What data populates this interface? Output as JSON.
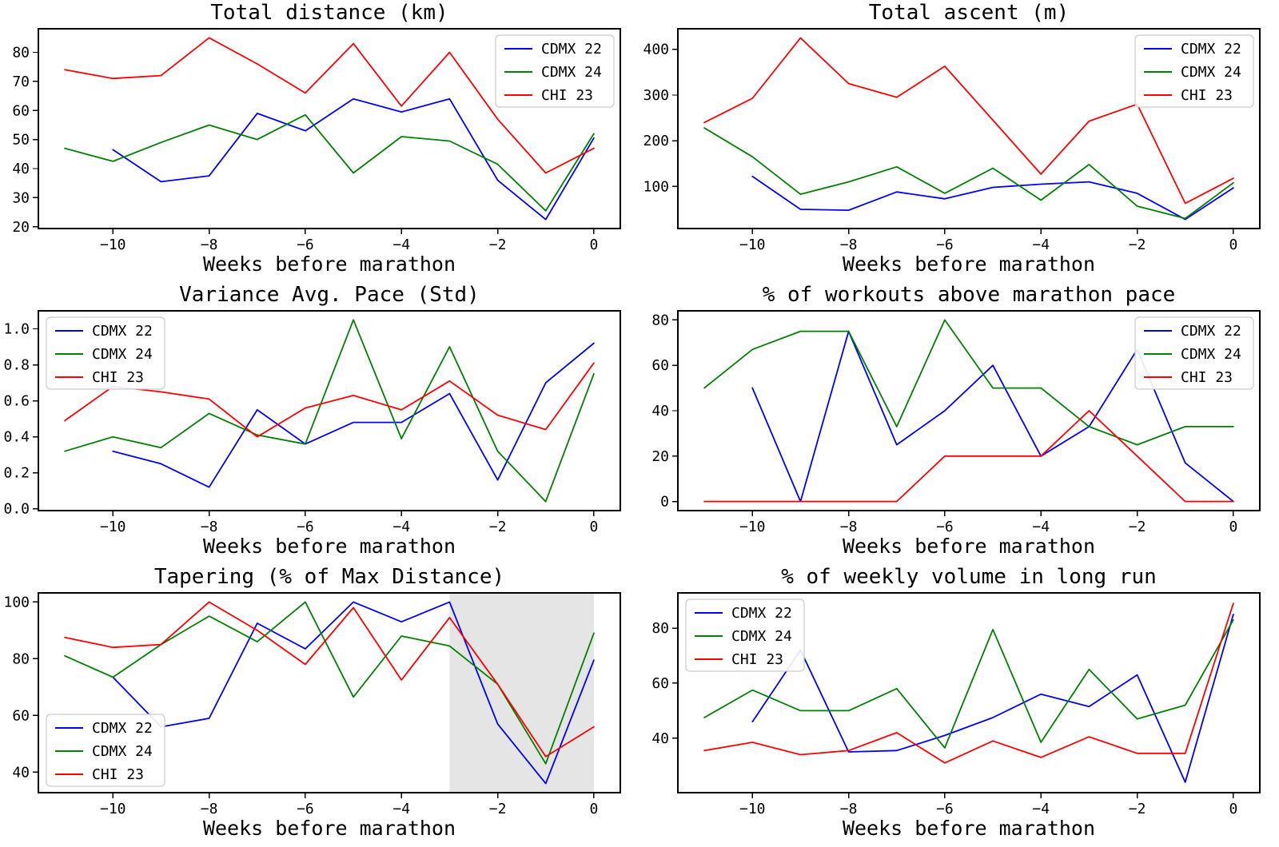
{
  "figure": {
    "background": "#ffffff",
    "series_colors": {
      "CDMX 22": "#0000ff",
      "CDMX 24": "#008000",
      "CHI 23": "#ff0000"
    },
    "shade_color": "#e5e5e5"
  },
  "chart_data": [
    {
      "type": "line",
      "title": "Total distance (km)",
      "xlabel": "Weeks before marathon",
      "xlim": [
        -11.55,
        0.55
      ],
      "ylim": [
        19.4,
        88.1
      ],
      "xticks": {
        "values": [
          -10,
          -8,
          -6,
          -4,
          -2,
          0
        ],
        "labels": [
          "−10",
          "−8",
          "−6",
          "−4",
          "−2",
          "0"
        ]
      },
      "yticks": {
        "values": [
          20,
          30,
          40,
          50,
          60,
          70,
          80
        ],
        "labels": [
          "20",
          "30",
          "40",
          "50",
          "60",
          "70",
          "80"
        ]
      },
      "legend": {
        "position": "upper-right"
      },
      "series": [
        {
          "name": "CDMX 22",
          "color": "#0000ff",
          "x": [
            -10,
            -9,
            -8,
            -7,
            -6,
            -5,
            -4,
            -3,
            -2,
            -1,
            0
          ],
          "y": [
            46.5,
            35.5,
            37.5,
            59,
            53,
            64,
            59.5,
            64,
            36,
            22.5,
            50.5
          ]
        },
        {
          "name": "CDMX 24",
          "color": "#008000",
          "x": [
            -11,
            -10,
            -9,
            -8,
            -7,
            -6,
            -5,
            -4,
            -3,
            -2,
            -1,
            0
          ],
          "y": [
            47,
            42.5,
            49,
            55,
            50,
            58.5,
            38.5,
            51,
            49.5,
            41.5,
            25.5,
            52
          ]
        },
        {
          "name": "CHI 23",
          "color": "#ff0000",
          "x": [
            -11,
            -10,
            -9,
            -8,
            -7,
            -6,
            -5,
            -4,
            -3,
            -2,
            -1,
            0
          ],
          "y": [
            74,
            71,
            72,
            85,
            76,
            66,
            83,
            61.5,
            80,
            57,
            38.5,
            47
          ]
        }
      ]
    },
    {
      "type": "line",
      "title": "Total ascent (m)",
      "xlabel": "Weeks before marathon",
      "xlim": [
        -11.55,
        0.55
      ],
      "ylim": [
        8,
        445
      ],
      "xticks": {
        "values": [
          -10,
          -8,
          -6,
          -4,
          -2,
          0
        ],
        "labels": [
          "−10",
          "−8",
          "−6",
          "−4",
          "−2",
          "0"
        ]
      },
      "yticks": {
        "values": [
          100,
          200,
          300,
          400
        ],
        "labels": [
          "100",
          "200",
          "300",
          "400"
        ]
      },
      "legend": {
        "position": "upper-right"
      },
      "series": [
        {
          "name": "CDMX 22",
          "color": "#0000ff",
          "x": [
            -10,
            -9,
            -8,
            -7,
            -6,
            -5,
            -4,
            -3,
            -2,
            -1,
            0
          ],
          "y": [
            122,
            50,
            48,
            88,
            73,
            98,
            105,
            110,
            85,
            28,
            97
          ]
        },
        {
          "name": "CDMX 24",
          "color": "#008000",
          "x": [
            -11,
            -10,
            -9,
            -8,
            -7,
            -6,
            -5,
            -4,
            -3,
            -2,
            -1,
            0
          ],
          "y": [
            228,
            165,
            83,
            110,
            143,
            85,
            140,
            70,
            148,
            57,
            30,
            108
          ]
        },
        {
          "name": "CHI 23",
          "color": "#ff0000",
          "x": [
            -11,
            -10,
            -9,
            -8,
            -7,
            -6,
            -5,
            -4,
            -3,
            -2,
            -1,
            0
          ],
          "y": [
            240,
            293,
            425,
            325,
            295,
            363,
            245,
            127,
            243,
            280,
            63,
            118
          ]
        }
      ]
    },
    {
      "type": "line",
      "title": "Variance Avg. Pace (Std)",
      "xlabel": "Weeks before marathon",
      "xlim": [
        -11.55,
        0.55
      ],
      "ylim": [
        -0.01,
        1.1
      ],
      "xticks": {
        "values": [
          -10,
          -8,
          -6,
          -4,
          -2,
          0
        ],
        "labels": [
          "−10",
          "−8",
          "−6",
          "−4",
          "−2",
          "0"
        ]
      },
      "yticks": {
        "values": [
          0.0,
          0.2,
          0.4,
          0.6,
          0.8,
          1.0
        ],
        "labels": [
          "0.0",
          "0.2",
          "0.4",
          "0.6",
          "0.8",
          "1.0"
        ]
      },
      "legend": {
        "position": "upper-left"
      },
      "series": [
        {
          "name": "CDMX 22",
          "color": "#0000ff",
          "x": [
            -10,
            -9,
            -8,
            -7,
            -6,
            -5,
            -4,
            -3,
            -2,
            -1,
            0
          ],
          "y": [
            0.32,
            0.25,
            0.12,
            0.55,
            0.36,
            0.48,
            0.48,
            0.64,
            0.16,
            0.7,
            0.92
          ]
        },
        {
          "name": "CDMX 24",
          "color": "#008000",
          "x": [
            -11,
            -10,
            -9,
            -8,
            -7,
            -6,
            -5,
            -4,
            -3,
            -2,
            -1,
            0
          ],
          "y": [
            0.32,
            0.4,
            0.34,
            0.53,
            0.41,
            0.36,
            1.05,
            0.39,
            0.9,
            0.32,
            0.04,
            0.75
          ]
        },
        {
          "name": "CHI 23",
          "color": "#ff0000",
          "x": [
            -11,
            -10,
            -9,
            -8,
            -7,
            -6,
            -5,
            -4,
            -3,
            -2,
            -1,
            0
          ],
          "y": [
            0.49,
            0.68,
            0.65,
            0.61,
            0.4,
            0.56,
            0.63,
            0.55,
            0.71,
            0.52,
            0.44,
            0.81
          ]
        }
      ]
    },
    {
      "type": "line",
      "title": "% of workouts above marathon pace",
      "xlabel": "Weeks before marathon",
      "xlim": [
        -11.55,
        0.55
      ],
      "ylim": [
        -4,
        84
      ],
      "xticks": {
        "values": [
          -10,
          -8,
          -6,
          -4,
          -2,
          0
        ],
        "labels": [
          "−10",
          "−8",
          "−6",
          "−4",
          "−2",
          "0"
        ]
      },
      "yticks": {
        "values": [
          0,
          20,
          40,
          60,
          80
        ],
        "labels": [
          "0",
          "20",
          "40",
          "60",
          "80"
        ]
      },
      "legend": {
        "position": "upper-right"
      },
      "series": [
        {
          "name": "CDMX 22",
          "color": "#0000ff",
          "x": [
            -10,
            -9,
            -8,
            -7,
            -6,
            -5,
            -4,
            -3,
            -2,
            -1,
            0
          ],
          "y": [
            50,
            0,
            75,
            25,
            40,
            60,
            20,
            33,
            67,
            17,
            0
          ]
        },
        {
          "name": "CDMX 24",
          "color": "#008000",
          "x": [
            -11,
            -10,
            -9,
            -8,
            -7,
            -6,
            -5,
            -4,
            -3,
            -2,
            -1,
            0
          ],
          "y": [
            50,
            67,
            75,
            75,
            33,
            80,
            50,
            50,
            33,
            25,
            33,
            33
          ]
        },
        {
          "name": "CHI 23",
          "color": "#ff0000",
          "x": [
            -11,
            -10,
            -9,
            -8,
            -7,
            -6,
            -5,
            -4,
            -3,
            -2,
            -1,
            0
          ],
          "y": [
            0,
            0,
            0,
            0,
            0,
            20,
            20,
            20,
            40,
            20,
            0,
            0
          ]
        }
      ]
    },
    {
      "type": "line",
      "title": "Tapering (% of Max Distance)",
      "xlabel": "Weeks before marathon",
      "xlim": [
        -11.55,
        0.55
      ],
      "ylim": [
        32.8,
        103.2
      ],
      "xticks": {
        "values": [
          -10,
          -8,
          -6,
          -4,
          -2,
          0
        ],
        "labels": [
          "−10",
          "−8",
          "−6",
          "−4",
          "−2",
          "0"
        ]
      },
      "yticks": {
        "values": [
          40,
          60,
          80,
          100
        ],
        "labels": [
          "40",
          "60",
          "80",
          "100"
        ]
      },
      "legend": {
        "position": "lower-left"
      },
      "shaded_span": {
        "x0": -3,
        "x1": 0
      },
      "series": [
        {
          "name": "CDMX 22",
          "color": "#0000ff",
          "x": [
            -10,
            -9,
            -8,
            -7,
            -6,
            -5,
            -4,
            -3,
            -2,
            -1,
            0
          ],
          "y": [
            73.5,
            56,
            59,
            92.5,
            83.5,
            100,
            93,
            100,
            57,
            36,
            79.5
          ]
        },
        {
          "name": "CDMX 24",
          "color": "#008000",
          "x": [
            -11,
            -10,
            -9,
            -8,
            -7,
            -6,
            -5,
            -4,
            -3,
            -2,
            -1,
            0
          ],
          "y": [
            81,
            73.5,
            85,
            95,
            86,
            100,
            66.5,
            88,
            84.5,
            71,
            43,
            89
          ]
        },
        {
          "name": "CHI 23",
          "color": "#ff0000",
          "x": [
            -11,
            -10,
            -9,
            -8,
            -7,
            -6,
            -5,
            -4,
            -3,
            -2,
            -1,
            0
          ],
          "y": [
            87.5,
            84,
            85,
            100,
            90,
            78,
            98,
            72.5,
            94.5,
            71,
            45.5,
            56
          ]
        }
      ]
    },
    {
      "type": "line",
      "title": "% of weekly volume in long run",
      "xlabel": "Weeks before marathon",
      "xlim": [
        -11.55,
        0.55
      ],
      "ylim": [
        20.2,
        92.8
      ],
      "xticks": {
        "values": [
          -10,
          -8,
          -6,
          -4,
          -2,
          0
        ],
        "labels": [
          "−10",
          "−8",
          "−6",
          "−4",
          "−2",
          "0"
        ]
      },
      "yticks": {
        "values": [
          40,
          60,
          80
        ],
        "labels": [
          "40",
          "60",
          "80"
        ]
      },
      "legend": {
        "position": "upper-left"
      },
      "series": [
        {
          "name": "CDMX 22",
          "color": "#0000ff",
          "x": [
            -10,
            -9,
            -8,
            -7,
            -6,
            -5,
            -4,
            -3,
            -2,
            -1,
            0
          ],
          "y": [
            46,
            72,
            35,
            35.5,
            41,
            47.5,
            56,
            51.5,
            63,
            24,
            85
          ]
        },
        {
          "name": "CDMX 24",
          "color": "#008000",
          "x": [
            -11,
            -10,
            -9,
            -8,
            -7,
            -6,
            -5,
            -4,
            -3,
            -2,
            -1,
            0
          ],
          "y": [
            47.5,
            57.5,
            50,
            50,
            58,
            36.5,
            79.5,
            38.5,
            65,
            47,
            52,
            83
          ]
        },
        {
          "name": "CHI 23",
          "color": "#ff0000",
          "x": [
            -11,
            -10,
            -9,
            -8,
            -7,
            -6,
            -5,
            -4,
            -3,
            -2,
            -1,
            0
          ],
          "y": [
            35.5,
            38.5,
            34,
            35.5,
            42,
            31,
            39,
            33,
            40.5,
            34.5,
            34.5,
            89
          ]
        }
      ]
    }
  ]
}
